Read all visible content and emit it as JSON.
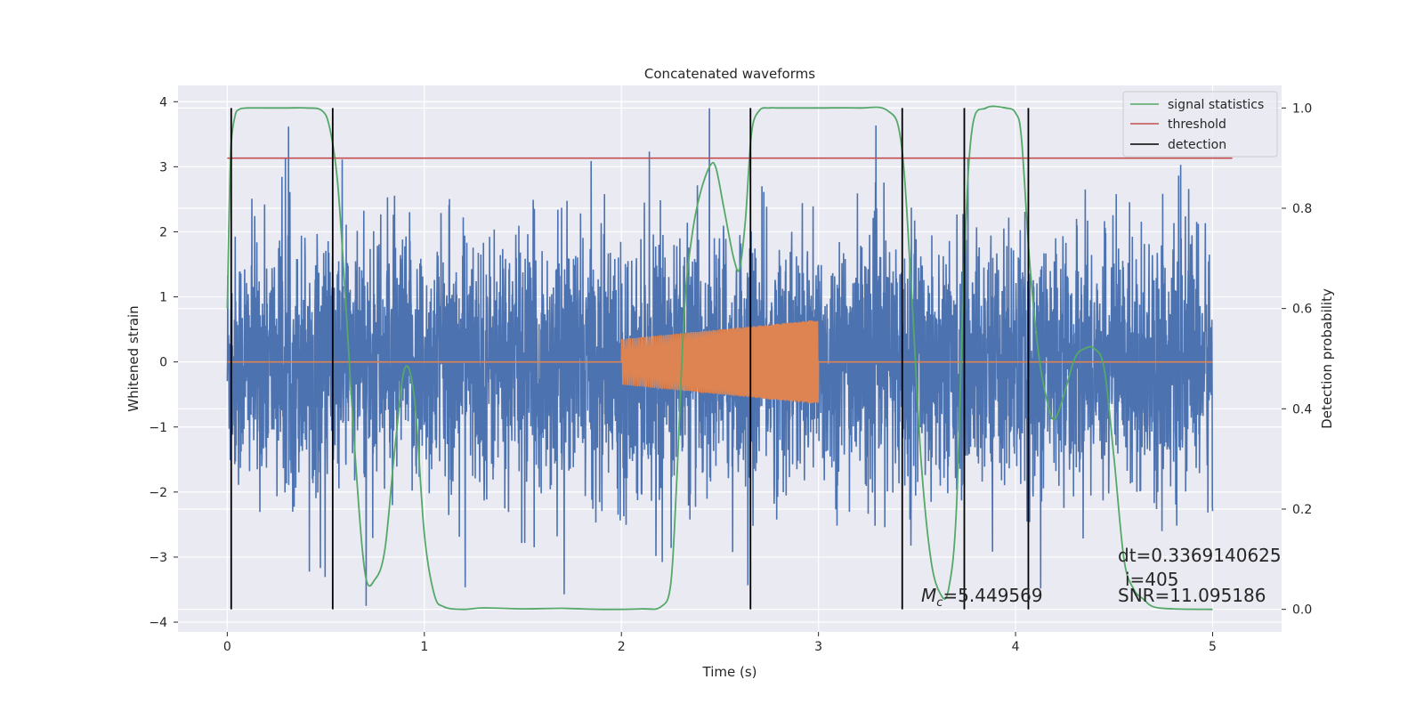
{
  "chart_data": {
    "type": "line",
    "title": "Concatenated waveforms",
    "xlabel": "Time (s)",
    "ylabel": "Whitened strain",
    "y2label": "Detection probability",
    "xlim": [
      -0.25,
      5.35
    ],
    "ylim": [
      -4.15,
      4.25
    ],
    "y2lim": [
      -0.045,
      1.045
    ],
    "xticks": [
      0,
      1,
      2,
      3,
      4,
      5
    ],
    "xtick_labels": [
      "0",
      "1",
      "2",
      "3",
      "4",
      "5"
    ],
    "yticks": [
      -4,
      -3,
      -2,
      -1,
      0,
      1,
      2,
      3,
      4
    ],
    "ytick_labels": [
      "−4",
      "−3",
      "−2",
      "−1",
      "0",
      "1",
      "2",
      "3",
      "4"
    ],
    "y2ticks": [
      0.0,
      0.2,
      0.4,
      0.6,
      0.8,
      1.0
    ],
    "y2tick_labels": [
      "0.0",
      "0.2",
      "0.4",
      "0.6",
      "0.8",
      "1.0"
    ],
    "grid": true,
    "legend_position": "top-right",
    "colors": {
      "strain": "#4c72b0",
      "injection": "#dd8452",
      "signal": "#55a868",
      "threshold": "#c44e52",
      "detection": "#000000",
      "background": "#eaeaf2",
      "grid": "#ffffff"
    },
    "series": [
      {
        "name": "whitened strain",
        "axis": "left",
        "x_range": [
          0,
          5
        ],
        "description": "dense noise, mostly within ±2.5, spikes to ±3.9"
      },
      {
        "name": "injected waveform",
        "axis": "left",
        "x_range": [
          0,
          5
        ],
        "chirp_window": [
          2.0,
          3.0
        ],
        "amplitude_start": 0.35,
        "amplitude_end": 0.65
      },
      {
        "name": "signal statistics",
        "axis": "right",
        "x": [
          0.0,
          0.01,
          0.02,
          0.04,
          0.06,
          0.1,
          0.2,
          0.3,
          0.4,
          0.48,
          0.52,
          0.56,
          0.6,
          0.65,
          0.7,
          0.75,
          0.8,
          0.85,
          0.9,
          0.95,
          1.0,
          1.05,
          1.1,
          1.2,
          1.3,
          1.5,
          1.7,
          1.9,
          2.1,
          2.2,
          2.25,
          2.28,
          2.32,
          2.36,
          2.4,
          2.45,
          2.48,
          2.52,
          2.57,
          2.6,
          2.63,
          2.66,
          2.7,
          2.75,
          2.8,
          3.0,
          3.2,
          3.35,
          3.42,
          3.47,
          3.52,
          3.57,
          3.62,
          3.66,
          3.7,
          3.74,
          3.78,
          3.85,
          3.95,
          4.0,
          4.03,
          4.07,
          4.12,
          4.17,
          4.2,
          4.24,
          4.3,
          4.35,
          4.4,
          4.45,
          4.5,
          4.55,
          4.6,
          4.65,
          4.7,
          4.8,
          5.0
        ],
        "values": [
          0.6,
          0.8,
          0.93,
          0.985,
          0.997,
          1.0,
          1.0,
          1.0,
          1.0,
          0.995,
          0.96,
          0.85,
          0.62,
          0.3,
          0.07,
          0.06,
          0.12,
          0.32,
          0.48,
          0.42,
          0.15,
          0.03,
          0.005,
          0.0,
          0.003,
          0.001,
          0.002,
          0.0,
          0.001,
          0.005,
          0.05,
          0.25,
          0.6,
          0.75,
          0.83,
          0.885,
          0.88,
          0.8,
          0.7,
          0.68,
          0.78,
          0.95,
          0.995,
          1.0,
          1.0,
          1.0,
          1.0,
          0.995,
          0.93,
          0.65,
          0.3,
          0.1,
          0.03,
          0.04,
          0.2,
          0.7,
          0.96,
          1.0,
          1.0,
          0.99,
          0.94,
          0.7,
          0.5,
          0.4,
          0.38,
          0.42,
          0.5,
          0.52,
          0.52,
          0.48,
          0.3,
          0.1,
          0.04,
          0.02,
          0.005,
          0.001,
          0.0
        ]
      },
      {
        "name": "threshold",
        "axis": "right",
        "x": [
          0.0,
          5.1
        ],
        "values": [
          0.9,
          0.9
        ]
      },
      {
        "name": "detection",
        "axis": "right",
        "type": "vlines",
        "x": [
          0.02,
          0.535,
          2.655,
          3.425,
          3.74,
          4.065
        ],
        "ymin": 0.0,
        "ymax": 1.0
      }
    ],
    "legend": [
      "signal statistics",
      "threshold",
      "detection"
    ],
    "annotations": {
      "mc_symbol": "M",
      "mc_subscript": "c",
      "mc_value": "=5.449569",
      "dt": "dt=0.3369140625",
      "i": "i=405",
      "snr": "SNR=11.095186"
    }
  }
}
